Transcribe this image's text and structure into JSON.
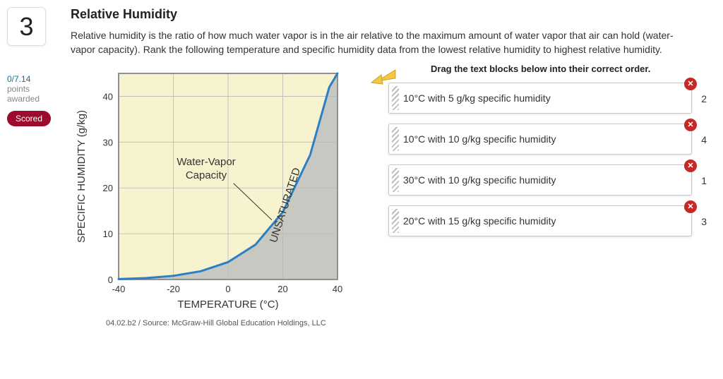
{
  "question_number": "3",
  "points": {
    "score": "0/7.14",
    "label": "points awarded"
  },
  "scored_badge": "Scored",
  "title": "Relative Humidity",
  "description": "Relative humidity is the ratio of how much water vapor is in the air relative to the maximum amount of water vapor that air can hold (water-vapor capacity). Rank the following temperature and specific humidity data from the lowest relative humidity to highest relative humidity.",
  "chart": {
    "type": "line",
    "x_label": "TEMPERATURE (°C)",
    "y_label": "SPECIFIC HUMIDITY (g/kg)",
    "annotation_label": "Water-Vapor Capacity",
    "region_label": "UNSATURATED",
    "caption": "04.02.b2 / Source: McGraw-Hill Global Education Holdings, LLC",
    "xlim": [
      -40,
      40
    ],
    "ylim": [
      0,
      45
    ],
    "xticks": [
      -40,
      -20,
      0,
      20,
      40
    ],
    "yticks": [
      0,
      10,
      20,
      30,
      40
    ],
    "label_fontsize": 15,
    "tick_fontsize": 13,
    "background_color": "#f8f3cf",
    "shade_color": "#c0c0c0",
    "border_color": "#808080",
    "grid_color": "#b8b8b8",
    "line_color": "#2b7fc4",
    "line_width": 3,
    "text_color": "#333333",
    "curve": [
      {
        "x": -40,
        "y": 0.1
      },
      {
        "x": -30,
        "y": 0.3
      },
      {
        "x": -20,
        "y": 0.8
      },
      {
        "x": -10,
        "y": 1.8
      },
      {
        "x": 0,
        "y": 3.8
      },
      {
        "x": 10,
        "y": 7.6
      },
      {
        "x": 20,
        "y": 14.7
      },
      {
        "x": 30,
        "y": 27.2
      },
      {
        "x": 37,
        "y": 42.0
      },
      {
        "x": 40,
        "y": 50.0
      }
    ]
  },
  "drag": {
    "instruction": "Drag the text blocks below into their correct order.",
    "items": [
      {
        "text": "10°C with 5 g/kg specific humidity",
        "order": "2"
      },
      {
        "text": "10°C with 10 g/kg specific humidity",
        "order": "4"
      },
      {
        "text": "30°C with 10 g/kg specific humidity",
        "order": "1"
      },
      {
        "text": "20°C with 15 g/kg specific humidity",
        "order": "3"
      }
    ]
  },
  "colors": {
    "accent_red": "#9c0a2e",
    "link_blue": "#0073a8",
    "close_red": "#c62828"
  }
}
